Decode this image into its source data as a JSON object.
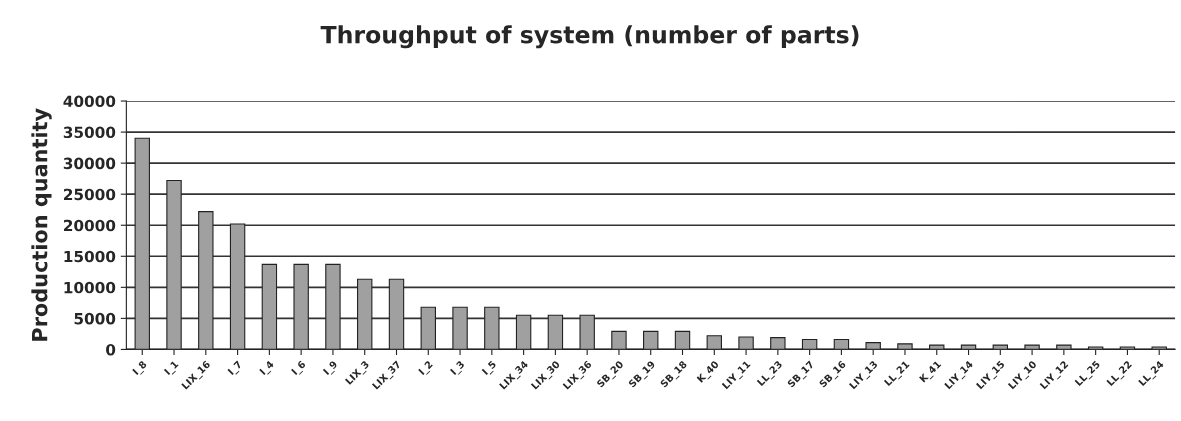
{
  "chart_data": {
    "type": "bar",
    "title": "Throughput of system (number of parts)",
    "ylabel": "Production quantity",
    "categories": [
      "I_8",
      "I_1",
      "LIX_16",
      "I_7",
      "I_4",
      "I_6",
      "I_9",
      "LIX_3",
      "LIX_37",
      "I_2",
      "I_3",
      "I_5",
      "LIX_34",
      "LIX_30",
      "LIX_36",
      "SB_20",
      "SB_19",
      "SB_18",
      "K_40",
      "LIY_11",
      "LL_23",
      "SB_17",
      "SB_16",
      "LIY_13",
      "LL_21",
      "K_41",
      "LIY_14",
      "LIY_15",
      "LIY_10",
      "LIY_12",
      "LL_25",
      "LL_22",
      "LL_24"
    ],
    "values": [
      34000,
      27200,
      22200,
      20200,
      13700,
      13700,
      13700,
      11300,
      11300,
      6800,
      6800,
      6800,
      5500,
      5500,
      5500,
      2900,
      2900,
      2900,
      2200,
      2000,
      1900,
      1600,
      1600,
      1100,
      900,
      700,
      700,
      700,
      700,
      700,
      400,
      400,
      400
    ],
    "color": "#a0a0a0",
    "ylim": [
      0,
      40000
    ],
    "yticks": [
      0,
      5000,
      10000,
      15000,
      20000,
      25000,
      30000,
      35000,
      40000
    ],
    "grid": "y"
  }
}
